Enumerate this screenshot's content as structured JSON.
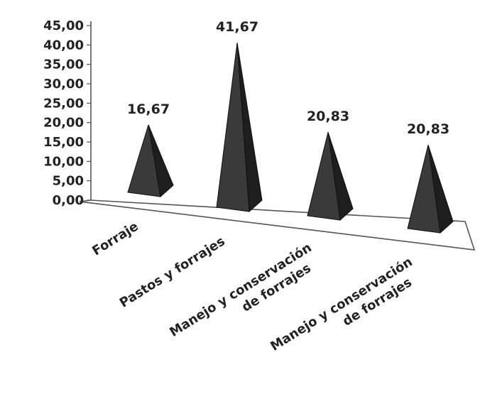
{
  "chart_data": {
    "type": "bar",
    "bar_shape": "pyramid-3d",
    "categories": [
      [
        "Forraje"
      ],
      [
        "Pastos y forrajes"
      ],
      [
        "Manejo y conservación",
        "de forrajes"
      ],
      [
        "Manejo y conservación",
        "de forrajes"
      ]
    ],
    "values": [
      16.67,
      41.67,
      20.83,
      20.83
    ],
    "data_labels": [
      "16,67",
      "41,67",
      "20,83",
      "20,83"
    ],
    "y_ticks": [
      "0,00",
      "5,00",
      "10,00",
      "15,00",
      "20,00",
      "25,00",
      "30,00",
      "35,00",
      "40,00",
      "45,00"
    ],
    "ylim": [
      0,
      45
    ],
    "bar_color": "#3a3a3a",
    "grid": false,
    "legend": "none"
  }
}
